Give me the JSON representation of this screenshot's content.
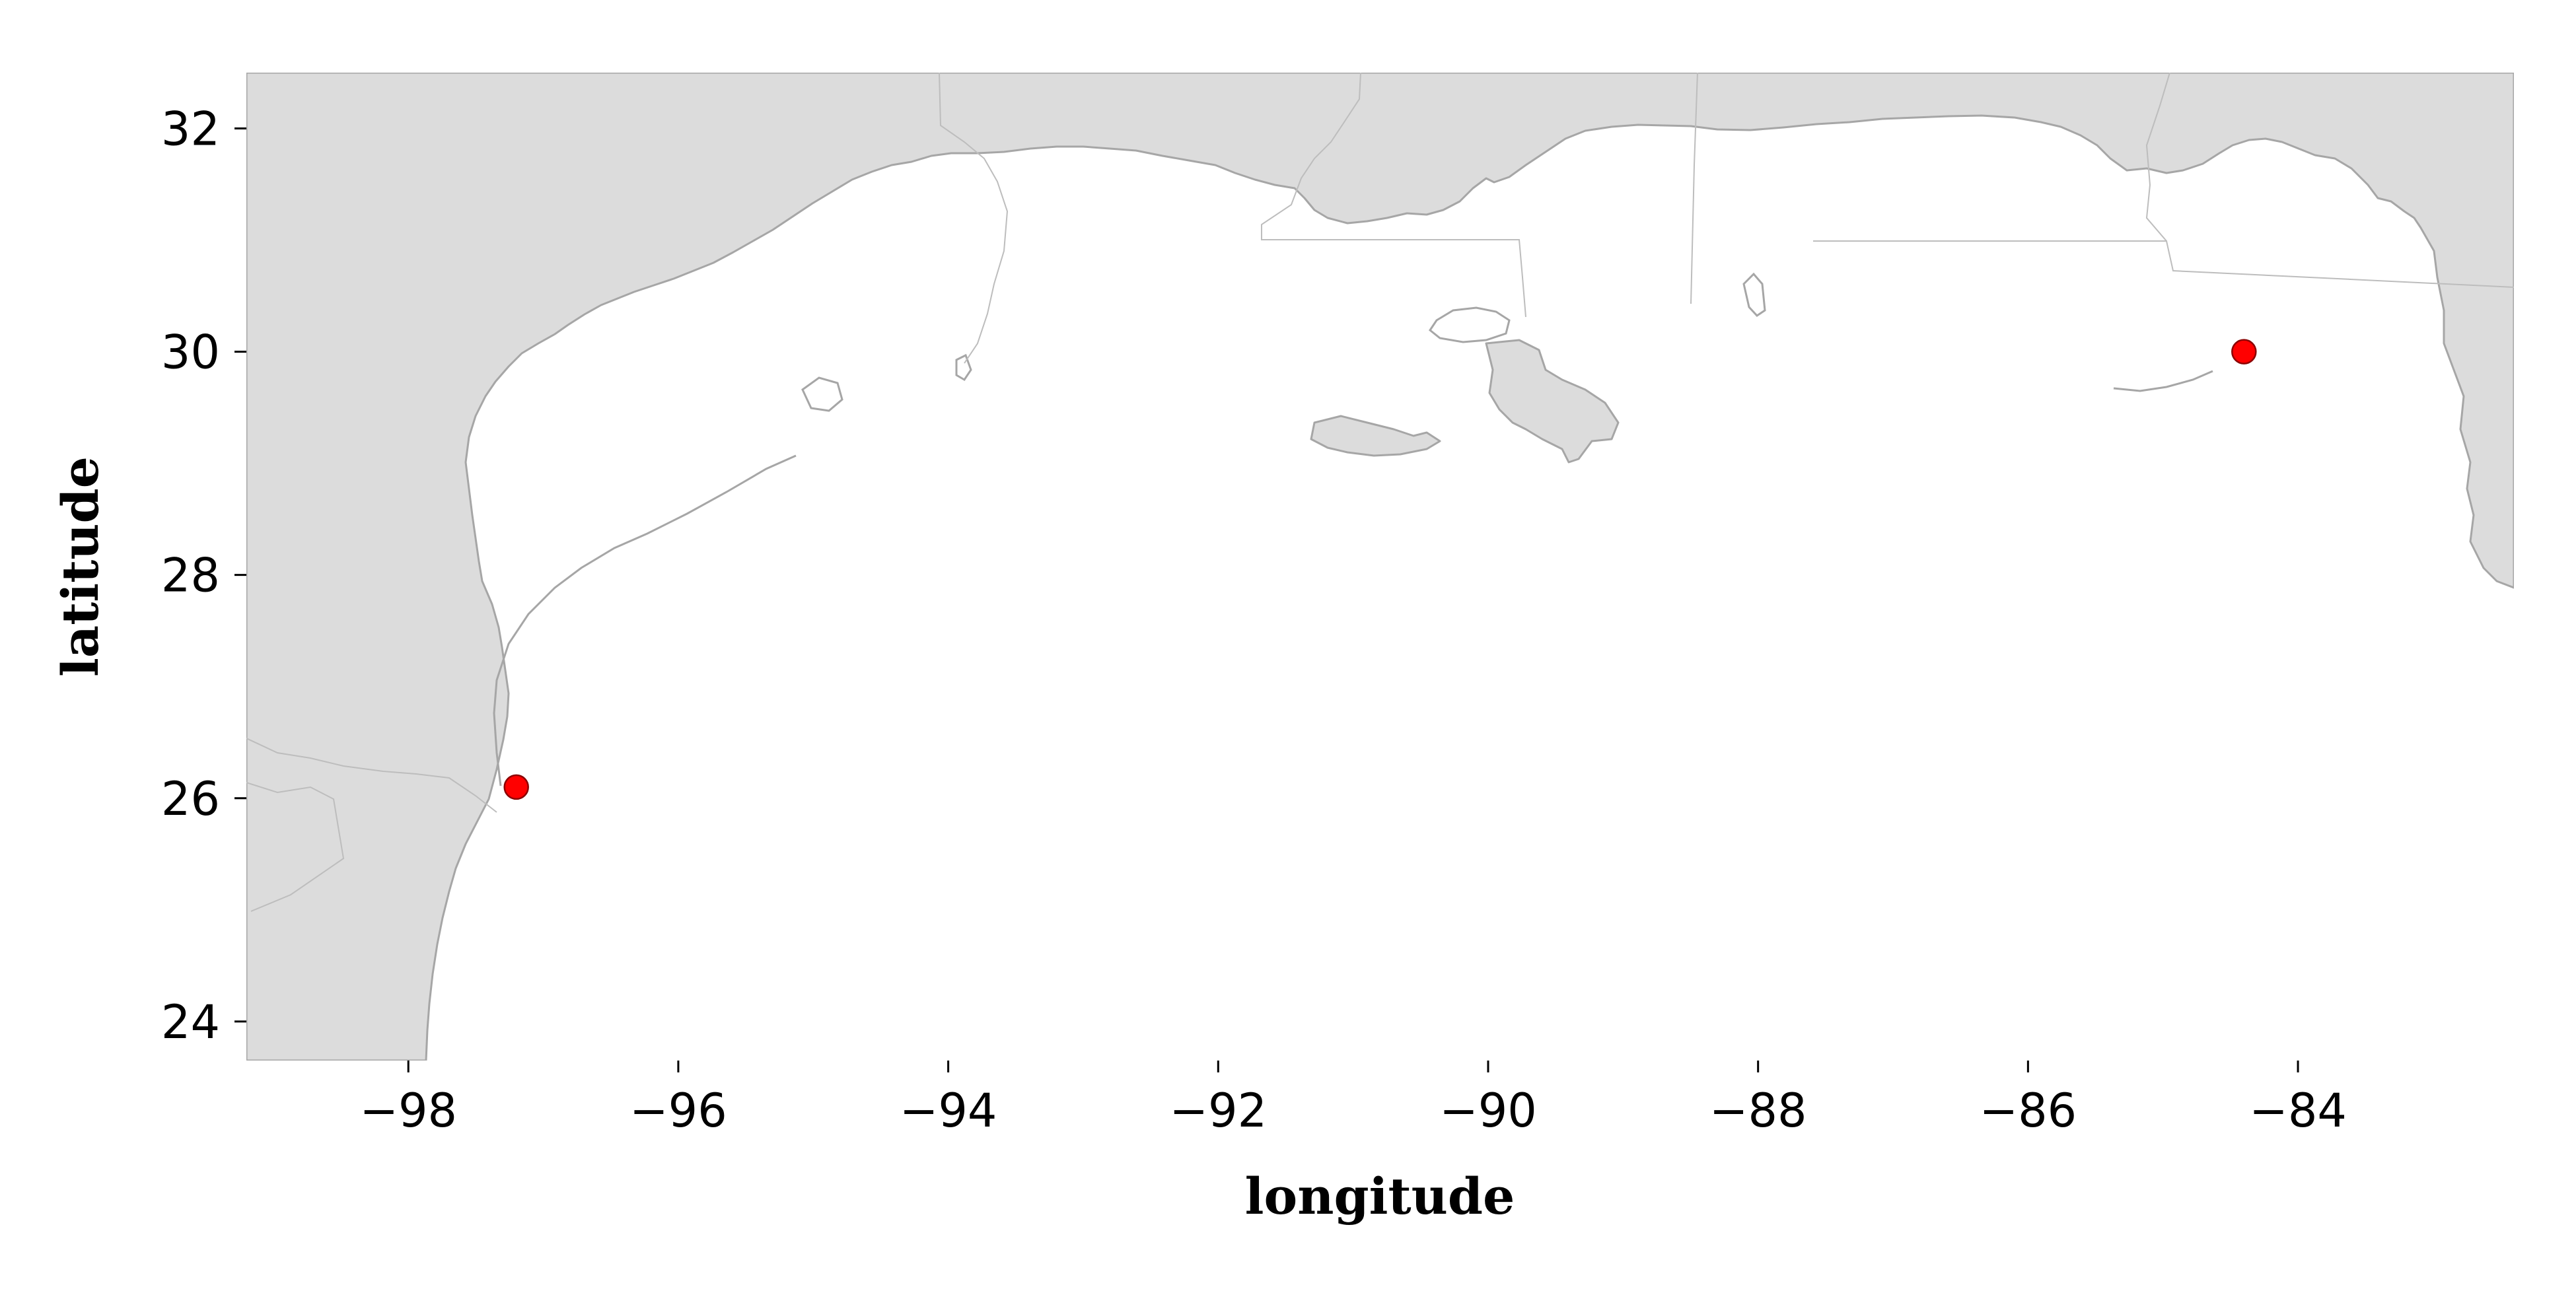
{
  "map": {
    "xlabel": "longitude",
    "ylabel": "latitude",
    "xlim": [
      -99.2,
      -82.4
    ],
    "ylim": [
      23.65,
      32.5
    ],
    "x_ticks": [
      -98,
      -96,
      -94,
      -92,
      -90,
      -88,
      -86,
      -84
    ],
    "y_ticks": [
      24,
      26,
      28,
      30,
      32
    ],
    "land_color": "#dcdcdc",
    "coast_color": "#a6a6a6",
    "ocean_color": "#ffffff",
    "marker_color": "#ff0000",
    "points": [
      {
        "lon": -97.2,
        "lat": 26.1
      },
      {
        "lon": -84.4,
        "lat": 30.0
      }
    ]
  }
}
